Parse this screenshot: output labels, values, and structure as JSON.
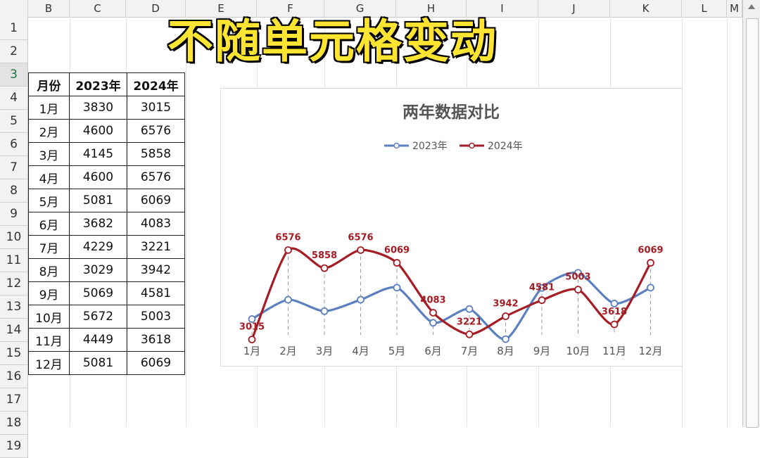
{
  "sheet": {
    "columns": [
      "B",
      "C",
      "D",
      "E",
      "F",
      "G",
      "H",
      "I",
      "J",
      "K",
      "L",
      "M"
    ],
    "rows": [
      "1",
      "2",
      "3",
      "4",
      "5",
      "6",
      "7",
      "8",
      "9",
      "10",
      "11",
      "12",
      "13",
      "14",
      "15",
      "16",
      "17",
      "18",
      "19"
    ],
    "selected_row": "3"
  },
  "banner": "不随单元格变动",
  "table": {
    "headers": [
      "月份",
      "2023年",
      "2024年"
    ],
    "rows": [
      [
        "1月",
        "3830",
        "3015"
      ],
      [
        "2月",
        "4600",
        "6576"
      ],
      [
        "3月",
        "4145",
        "5858"
      ],
      [
        "4月",
        "4600",
        "6576"
      ],
      [
        "5月",
        "5081",
        "6069"
      ],
      [
        "6月",
        "3682",
        "4083"
      ],
      [
        "7月",
        "4229",
        "3221"
      ],
      [
        "8月",
        "3029",
        "3942"
      ],
      [
        "9月",
        "5069",
        "4581"
      ],
      [
        "10月",
        "5672",
        "5003"
      ],
      [
        "11月",
        "4449",
        "3618"
      ],
      [
        "12月",
        "5081",
        "6069"
      ]
    ]
  },
  "chart_data": {
    "type": "line",
    "title": "两年数据对比",
    "legend_position": "top",
    "categories": [
      "1月",
      "2月",
      "3月",
      "4月",
      "5月",
      "6月",
      "7月",
      "8月",
      "9月",
      "10月",
      "11月",
      "12月"
    ],
    "series": [
      {
        "name": "2023年",
        "color": "#5b7fbf",
        "values": [
          3830,
          4600,
          4145,
          4600,
          5081,
          3682,
          4229,
          3029,
          5069,
          5672,
          4449,
          5081
        ],
        "labels": false
      },
      {
        "name": "2024年",
        "color": "#a51c24",
        "values": [
          3015,
          6576,
          5858,
          6576,
          6069,
          4083,
          3221,
          3942,
          4581,
          5003,
          3618,
          6069
        ],
        "labels": true
      }
    ],
    "drop_lines": true,
    "grid": false
  }
}
